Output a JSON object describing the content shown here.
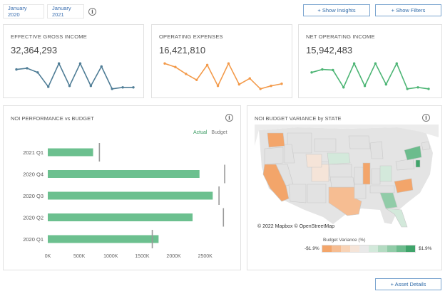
{
  "header": {
    "date_start": "January 2020",
    "date_end": "January 2021",
    "show_insights": "+ Show Insights",
    "show_filters": "+ Show Filters"
  },
  "kpis": [
    {
      "title": "EFFECTIVE GROSS INCOME",
      "value": "32,364,293",
      "color": "#4f7d96",
      "trend": [
        0.6,
        0.64,
        0.5,
        0.02,
        0.8,
        0.05,
        0.8,
        0.05,
        0.7,
        -0.05,
        0.0,
        0.0
      ]
    },
    {
      "title": "OPERATING EXPENSES",
      "value": "16,421,810",
      "color": "#f39a4a",
      "trend": [
        0.8,
        0.68,
        0.45,
        0.25,
        0.75,
        0.05,
        0.8,
        0.1,
        0.3,
        -0.05,
        0.05,
        0.12
      ]
    },
    {
      "title": "NET OPERATING INCOME",
      "value": "15,942,483",
      "color": "#4db575",
      "trend": [
        0.5,
        0.6,
        0.58,
        0.0,
        0.8,
        0.05,
        0.8,
        0.1,
        0.8,
        -0.05,
        0.0,
        -0.05
      ]
    }
  ],
  "noi_panel": {
    "title": "NOI PERFORMANCE vs BUDGET",
    "legend_actual": "Actual",
    "legend_budget": "Budget",
    "actual_color": "#6cc08f",
    "budget_color": "#999999"
  },
  "chart_data": {
    "type": "bar",
    "orientation": "horizontal",
    "categories": [
      "2021 Q1",
      "2020 Q4",
      "2020 Q3",
      "2020 Q2",
      "2020 Q1"
    ],
    "series": [
      {
        "name": "Actual",
        "values": [
          720000,
          2410000,
          2620000,
          2300000,
          1760000
        ]
      },
      {
        "name": "Budget",
        "values": [
          820000,
          2810000,
          2720000,
          2790000,
          1660000
        ]
      }
    ],
    "xticks": [
      "0K",
      "500K",
      "1000K",
      "1500K",
      "2000K",
      "2500K"
    ],
    "xlim": [
      0,
      2900000
    ],
    "grid": false,
    "legend": "top-right"
  },
  "map_panel": {
    "title": "NOI BUDGET VARIANCE by STATE",
    "credit": "© 2022 Mapbox © OpenStreetMap",
    "variance_title": "Budget Variance (%)",
    "variance_min": "-$1.9%",
    "variance_max": "$1.9%",
    "scale_colors": [
      "#f3a56a",
      "#f6bd92",
      "#f8d3b6",
      "#f5e4d8",
      "#e9e9e9",
      "#d3e9db",
      "#b4dbc2",
      "#91cca8",
      "#6cbc8d",
      "#3fa46a"
    ]
  },
  "footer": {
    "asset_details": "+ Asset Details"
  }
}
